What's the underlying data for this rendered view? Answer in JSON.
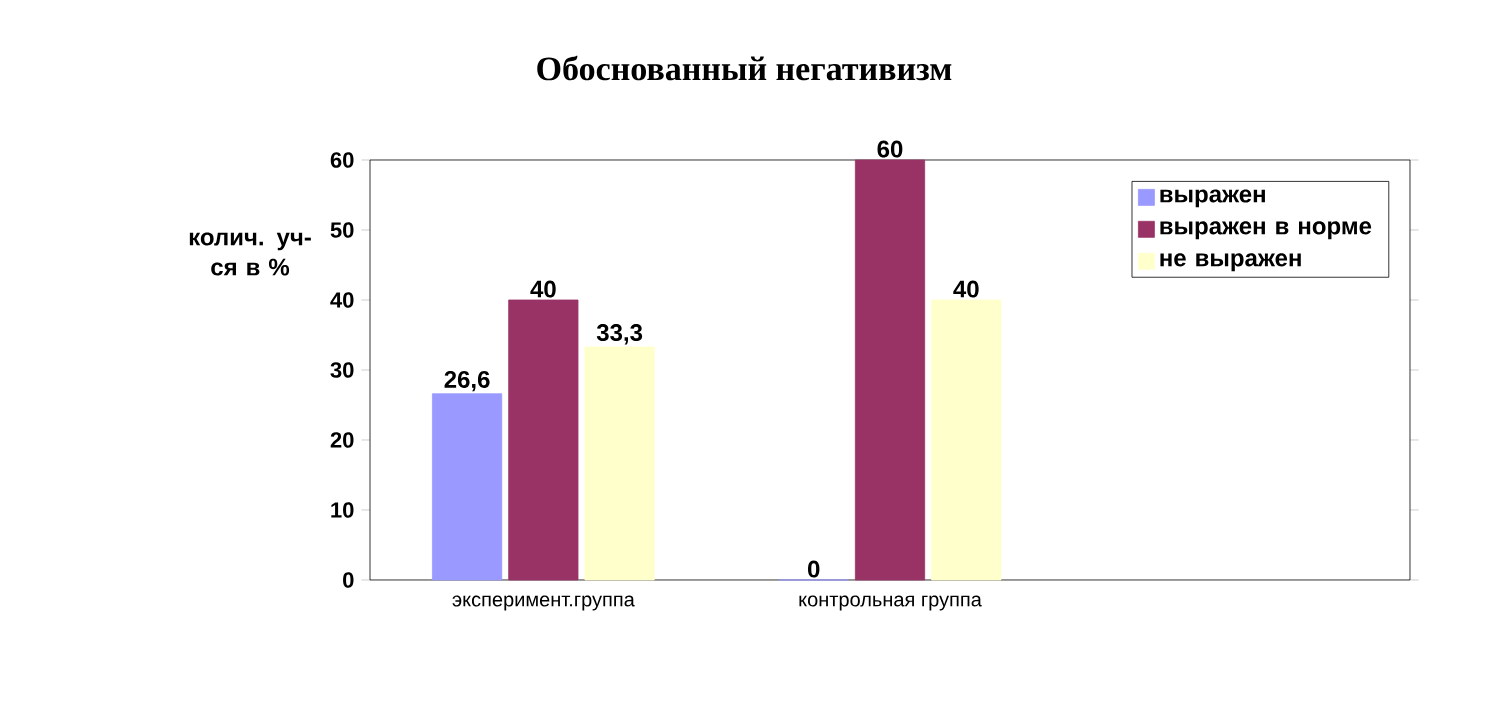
{
  "chart_data": {
    "type": "bar",
    "title": "Обоснованный негативизм",
    "ylabel": "колич. уч-ся в %",
    "categories": [
      "эксперимент.группа",
      "контрольная группа",
      null
    ],
    "series": [
      {
        "name": "выражен",
        "color": "#9999ff",
        "values": [
          26.6,
          0,
          null
        ],
        "value_labels": [
          "26,6",
          "0",
          null
        ]
      },
      {
        "name": "выражен в норме",
        "color": "#993366",
        "values": [
          40,
          60,
          null
        ],
        "value_labels": [
          "40",
          "60",
          null
        ]
      },
      {
        "name": "не выражен",
        "color": "#ffffcc",
        "values": [
          33.3,
          40,
          null
        ],
        "value_labels": [
          "33,3",
          "40",
          null
        ]
      }
    ],
    "ylim": [
      0,
      60
    ],
    "yticks": [
      0,
      10,
      20,
      30,
      40,
      50,
      60
    ],
    "legend": "top right",
    "grid": false
  }
}
